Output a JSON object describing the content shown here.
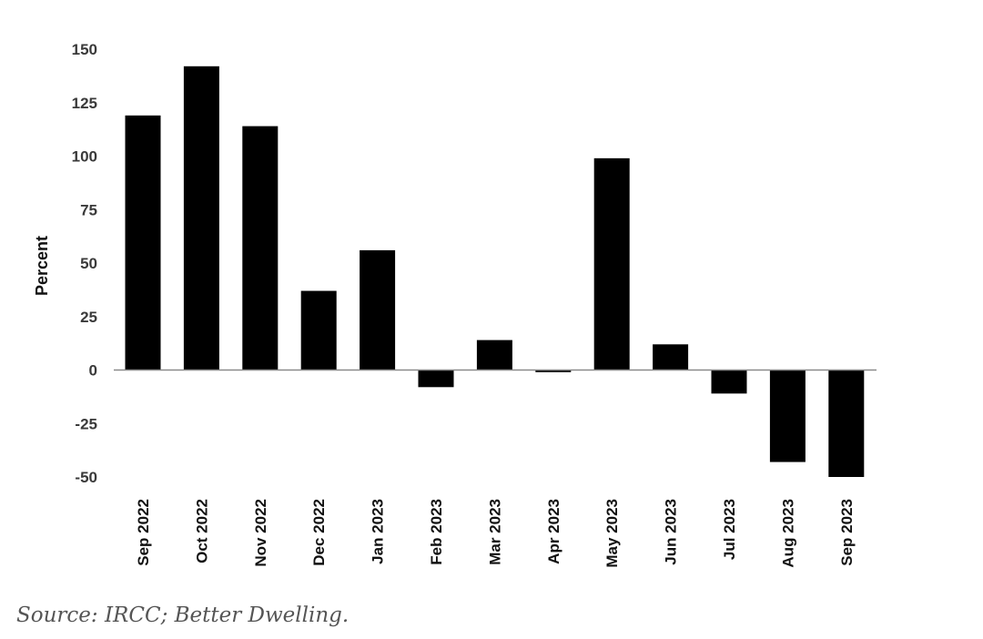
{
  "chart_data": {
    "type": "bar",
    "categories": [
      "Sep 2022",
      "Oct 2022",
      "Nov 2022",
      "Dec 2022",
      "Jan 2023",
      "Feb 2023",
      "Mar 2023",
      "Apr 2023",
      "May 2023",
      "Jun 2023",
      "Jul 2023",
      "Aug 2023",
      "Sep 2023"
    ],
    "values": [
      119,
      142,
      114,
      37,
      56,
      -8,
      14,
      -1,
      99,
      12,
      -11,
      -43,
      -50
    ],
    "title": "",
    "xlabel": "",
    "ylabel": "Percent",
    "ylim": [
      -50,
      150
    ],
    "yticks": [
      150,
      125,
      100,
      75,
      50,
      25,
      0,
      -25,
      -50
    ],
    "grid": false,
    "bar_color": "#000000"
  },
  "source": "Source: IRCC; Better Dwelling."
}
